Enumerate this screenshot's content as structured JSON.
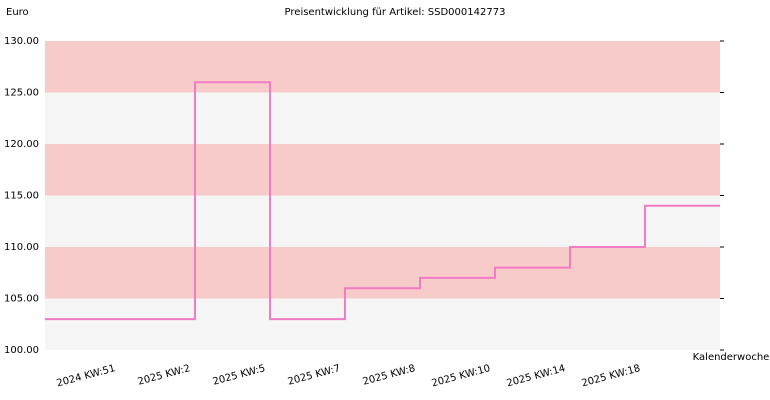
{
  "chart_data": {
    "type": "step",
    "title": "Preisentwicklung für Artikel: SSD000142773",
    "y_label": "Euro",
    "x_label": "Kalenderwoche",
    "categories": [
      null,
      "2024 KW:51",
      "2025 KW:2",
      "2025 KW:5",
      "2025 KW:7",
      "2025 KW:8",
      "2025 KW:10",
      "2025 KW:14",
      "2025 KW:18"
    ],
    "values": [
      103,
      103,
      126,
      103,
      106,
      107,
      108,
      110,
      114
    ],
    "color": "#f07cc4",
    "band_colors": [
      "#f8cbcb",
      "#f5f5f5"
    ],
    "ylim": [
      100,
      130
    ],
    "yticks": [
      {
        "value": 100,
        "label": "100.00"
      },
      {
        "value": 105,
        "label": "105.00"
      },
      {
        "value": 110,
        "label": "110.00"
      },
      {
        "value": 115,
        "label": "115.00"
      },
      {
        "value": 120,
        "label": "120.00"
      },
      {
        "value": 125,
        "label": "125.00"
      },
      {
        "value": 130,
        "label": "130.00"
      }
    ]
  }
}
